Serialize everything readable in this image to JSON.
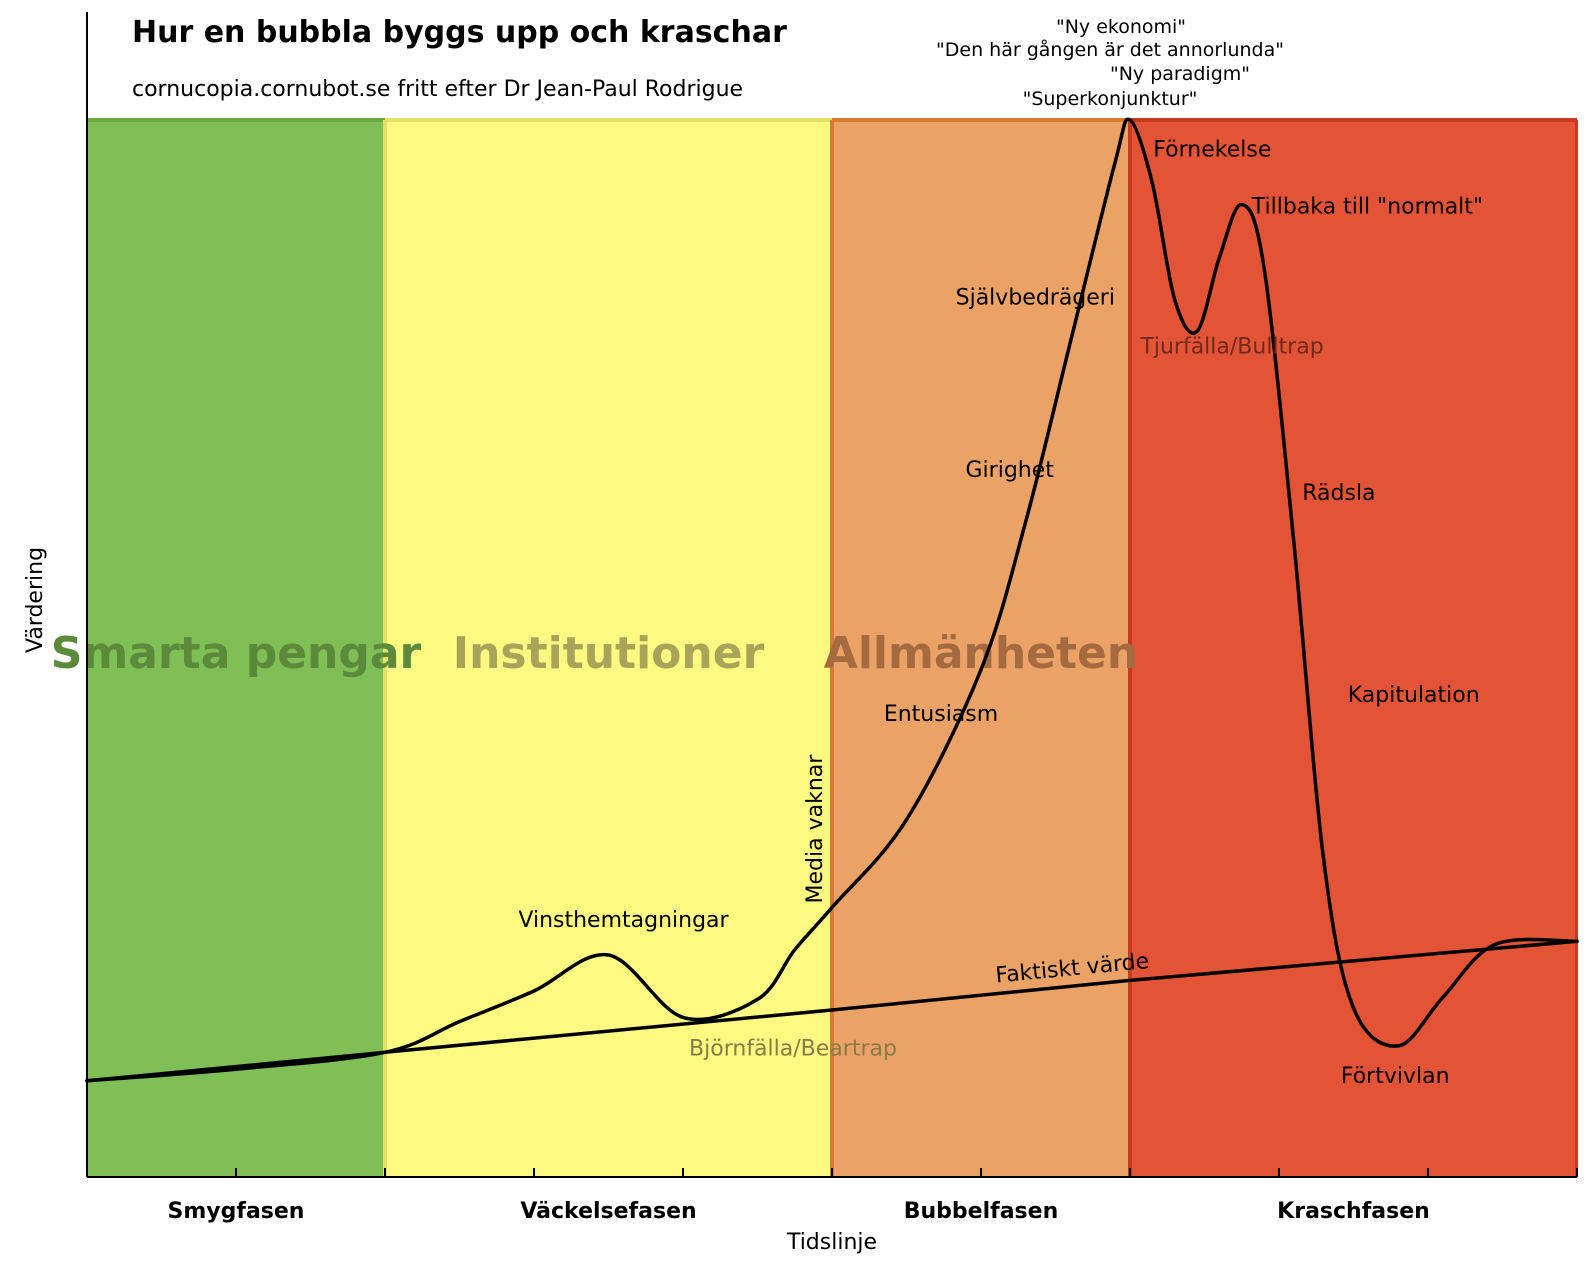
{
  "chart_data": {
    "type": "line",
    "title": "Hur en bubbla byggs upp och kraschar",
    "subtitle": "cornucopia.cornubot.se fritt efter Dr Jean-Paul Rodrigue",
    "xlabel": "Tidslinje",
    "ylabel": "Värdering",
    "ylim": [
      0,
      100
    ],
    "xlim": [
      0,
      10
    ],
    "grid": false,
    "phases": [
      {
        "name": "Smygfasen",
        "group": "Smarta pengar",
        "start": 0,
        "end": 2,
        "color": "#80bf55",
        "edge": "#6aa840",
        "group_color": "#5a8a3a"
      },
      {
        "name": "Väckelsefasen",
        "group": "Institutioner",
        "start": 2,
        "end": 5,
        "color": "#fdf981",
        "edge": "#e6e06a",
        "group_color": "#a8a55a"
      },
      {
        "name": "Bubbelfasen",
        "group": "Allmänheten",
        "start": 5,
        "end": 7,
        "color": "#eba266",
        "edge": "#d67a35",
        "group_color": "#a66a40"
      },
      {
        "name": "Kraschfasen",
        "group": "",
        "start": 7,
        "end": 10,
        "color": "#e35335",
        "edge": "#c83a20",
        "group_color": ""
      }
    ],
    "x_ticks": [
      0,
      1,
      2,
      3,
      4,
      5,
      6,
      7,
      8,
      9,
      10
    ],
    "series": [
      {
        "name": "",
        "values_xy": [
          [
            0.0,
            9.1
          ],
          [
            1.0,
            10.2
          ],
          [
            2.0,
            11.8
          ],
          [
            2.5,
            14.7
          ],
          [
            3.0,
            17.6
          ],
          [
            3.5,
            21.0
          ],
          [
            4.0,
            15.1
          ],
          [
            4.5,
            16.8
          ],
          [
            4.75,
            21.5
          ],
          [
            5.0,
            25.5
          ],
          [
            5.5,
            33.8
          ],
          [
            6.0,
            48.0
          ],
          [
            6.3,
            62.0
          ],
          [
            6.6,
            79.0
          ],
          [
            6.9,
            96.0
          ],
          [
            7.0,
            100.0
          ],
          [
            7.15,
            94.0
          ],
          [
            7.3,
            83.0
          ],
          [
            7.45,
            80.0
          ],
          [
            7.6,
            87.0
          ],
          [
            7.75,
            92.0
          ],
          [
            7.9,
            86.0
          ],
          [
            8.1,
            60.0
          ],
          [
            8.3,
            30.0
          ],
          [
            8.5,
            16.0
          ],
          [
            8.8,
            12.4
          ],
          [
            9.1,
            17.0
          ],
          [
            9.45,
            22.0
          ],
          [
            10.0,
            22.3
          ]
        ]
      },
      {
        "name": "Faktiskt värde",
        "values_xy": [
          [
            0,
            9.1
          ],
          [
            2,
            11.8
          ],
          [
            5,
            15.8
          ],
          [
            7,
            18.6
          ],
          [
            10,
            22.3
          ]
        ]
      }
    ],
    "annotations": [
      {
        "label": "Vinsthemtagningar",
        "x": 3.5,
        "y": 21.0
      },
      {
        "label": "Björnfälla/Beartrap",
        "x": 4.0,
        "y": 15.1,
        "muted": true
      },
      {
        "label": "Media vaknar",
        "x": 5.0,
        "y": 25.5,
        "rotated": true
      },
      {
        "label": "Entusiasm",
        "x": 6.0,
        "y": 44.0
      },
      {
        "label": "Girighet",
        "x": 6.3,
        "y": 67.0
      },
      {
        "label": "Självbedrägeri",
        "x": 6.7,
        "y": 83.0
      },
      {
        "label": "Förnekelse",
        "x": 7.15,
        "y": 96.0
      },
      {
        "label": "Tjurfälla/Bulltrap",
        "x": 7.45,
        "y": 80.0,
        "muted": true
      },
      {
        "label": "Tillbaka till \"normalt\"",
        "x": 7.75,
        "y": 92.0
      },
      {
        "label": "Rädsla",
        "x": 8.1,
        "y": 65.0
      },
      {
        "label": "Kapitulation",
        "x": 8.3,
        "y": 46.0
      },
      {
        "label": "Förtvivlan",
        "x": 8.8,
        "y": 12.4
      },
      {
        "label": "Faktiskt värde",
        "x": 6.0,
        "y": 17.0,
        "rotated": true
      }
    ],
    "peak_quotes": [
      "\"Ny ekonomi\"",
      "\"Den här gången är det annorlunda\"",
      "\"Ny paradigm\"",
      "\"Superkonjunktur\""
    ]
  }
}
